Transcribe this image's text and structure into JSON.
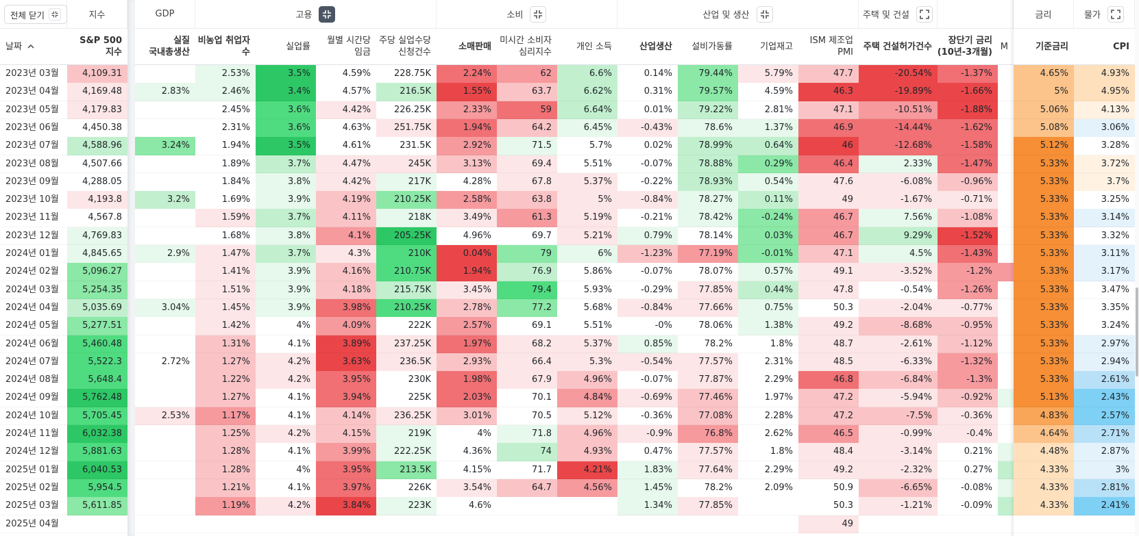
{
  "toolbar": {
    "close_all": "전체 닫기"
  },
  "palette": {
    "w": "#ffffff",
    "g1": "#e7f8ec",
    "g2": "#c2f0cf",
    "g3": "#8be8a6",
    "g4": "#4fdc80",
    "g5": "#2dc865",
    "r1": "#fde6e7",
    "r2": "#fac4c6",
    "r3": "#f69a9e",
    "r4": "#f07074",
    "r5": "#ea4649",
    "o0": "#fff2e3",
    "o1": "#fee0bd",
    "o2": "#fcc48b",
    "o3": "#f9a659",
    "o4": "#f68f36",
    "b1": "#e4f2fc",
    "b2": "#b8e1f7",
    "b3": "#7ed0f5"
  },
  "groups": [
    {
      "label": "지수",
      "start": 1,
      "span": 1
    },
    {
      "label": "GDP",
      "start": 2,
      "span": 1
    },
    {
      "label": "고용",
      "start": 3,
      "span": 4,
      "icon": "collapse-active"
    },
    {
      "label": "소비",
      "start": 7,
      "span": 3,
      "icon": "collapse"
    },
    {
      "label": "산업 및 생산",
      "start": 10,
      "span": 4,
      "icon": "collapse"
    },
    {
      "label": "주택 및 건설",
      "start": 14,
      "span": 1,
      "icon": "expand"
    },
    {
      "label": "금리",
      "start": 17,
      "span": 1
    },
    {
      "label": "물가",
      "start": 18,
      "span": 1,
      "icon": "expand"
    }
  ],
  "columns": [
    {
      "header": [
        "날짜"
      ],
      "bold": false,
      "sort": "asc"
    },
    {
      "header": [
        "S&P 500",
        "지수"
      ],
      "bold": true
    },
    {
      "header": [
        "실질",
        "국내총생산"
      ],
      "bold": true
    },
    {
      "header": [
        "비농업 취업자",
        "수"
      ],
      "bold": true
    },
    {
      "header": [
        "실업률"
      ],
      "bold": false
    },
    {
      "header": [
        "월별 시간당",
        "임금"
      ],
      "bold": false
    },
    {
      "header": [
        "주당 실업수당",
        "신청건수"
      ],
      "bold": false
    },
    {
      "header": [
        "소매판매"
      ],
      "bold": true
    },
    {
      "header": [
        "미시간 소비자",
        "심리지수"
      ],
      "bold": false
    },
    {
      "header": [
        "개인 소득"
      ],
      "bold": false
    },
    {
      "header": [
        "산업생산"
      ],
      "bold": true
    },
    {
      "header": [
        "설비가동률"
      ],
      "bold": false
    },
    {
      "header": [
        "기업재고"
      ],
      "bold": false
    },
    {
      "header": [
        "ISM 제조업",
        "PMI"
      ],
      "bold": false
    },
    {
      "header": [
        "주택 건설허가건수"
      ],
      "bold": true
    },
    {
      "header": [
        "장단기 금리",
        "(10년-3개월)"
      ],
      "bold": true
    },
    {
      "header": [
        "M"
      ],
      "bold": false
    },
    {
      "header": [
        "기준금리"
      ],
      "bold": true
    },
    {
      "header": [
        "CPI"
      ],
      "bold": true
    }
  ],
  "rows": [
    {
      "cells": [
        "2023년 03월",
        "4,109.31",
        null,
        "2.53%",
        "3.5%",
        "4.59%",
        "228.75K",
        "2.24%",
        "62",
        "6.6%",
        "0.14%",
        "79.44%",
        "5.79%",
        "47.7",
        "-20.54%",
        "-1.37%",
        null,
        "4.65%",
        "4.93%"
      ],
      "colors": [
        "w",
        "r2",
        "w",
        "g1",
        "g5",
        "w",
        "w",
        "r4",
        "r3",
        "g2",
        "w",
        "g3",
        "r1",
        "r2",
        "r5",
        "r4",
        "w",
        "o2",
        "o1"
      ]
    },
    {
      "cells": [
        "2023년 04월",
        "4,169.48",
        "2.83%",
        "2.46%",
        "3.4%",
        "4.57%",
        "216.5K",
        "1.55%",
        "63.7",
        "6.62%",
        "0.31%",
        "79.57%",
        "4.59%",
        "46.3",
        "-19.89%",
        "-1.66%",
        null,
        "5%",
        "4.95%"
      ],
      "colors": [
        "w",
        "r1",
        "g1",
        "g1",
        "g5",
        "w",
        "g2",
        "r5",
        "r2",
        "g2",
        "w",
        "g3",
        "w",
        "r5",
        "r5",
        "r5",
        "w",
        "o2",
        "o1"
      ]
    },
    {
      "cells": [
        "2023년 05월",
        "4,179.83",
        null,
        "2.45%",
        "3.6%",
        "4.42%",
        "226.25K",
        "2.33%",
        "59",
        "6.64%",
        "0.01%",
        "79.22%",
        "2.81%",
        "47.1",
        "-10.51%",
        "-1.88%",
        null,
        "5.06%",
        "4.13%"
      ],
      "colors": [
        "w",
        "r1",
        "w",
        "w",
        "g4",
        "r1",
        "w",
        "r3",
        "r4",
        "g2",
        "w",
        "g2",
        "w",
        "r2",
        "r3",
        "r5",
        "w",
        "o2",
        "o0"
      ]
    },
    {
      "cells": [
        "2023년 06월",
        "4,450.38",
        null,
        "2.31%",
        "3.6%",
        "4.63%",
        "251.75K",
        "1.94%",
        "64.2",
        "6.45%",
        "-0.43%",
        "78.6%",
        "1.37%",
        "46.9",
        "-14.44%",
        "-1.62%",
        null,
        "5.08%",
        "3.06%"
      ],
      "colors": [
        "w",
        "w",
        "w",
        "w",
        "g4",
        "w",
        "r1",
        "r4",
        "r2",
        "g1",
        "r1",
        "g1",
        "g1",
        "r4",
        "r4",
        "r4",
        "w",
        "o2",
        "b1"
      ]
    },
    {
      "cells": [
        "2023년 07월",
        "4,588.96",
        "3.24%",
        "1.94%",
        "3.5%",
        "4.61%",
        "231.5K",
        "2.92%",
        "71.5",
        "5.7%",
        "0.02%",
        "78.99%",
        "0.64%",
        "46",
        "-12.68%",
        "-1.58%",
        null,
        "5.12%",
        "3.28%"
      ],
      "colors": [
        "w",
        "g2",
        "g3",
        "w",
        "g5",
        "w",
        "w",
        "r3",
        "g1",
        "w",
        "w",
        "g2",
        "g2",
        "r5",
        "r4",
        "r4",
        "w",
        "o4",
        "w"
      ]
    },
    {
      "cells": [
        "2023년 08월",
        "4,507.66",
        null,
        "1.89%",
        "3.7%",
        "4.47%",
        "245K",
        "3.13%",
        "69.4",
        "5.51%",
        "-0.07%",
        "78.88%",
        "0.29%",
        "46.4",
        "2.33%",
        "-1.47%",
        null,
        "5.33%",
        "3.72%"
      ],
      "colors": [
        "w",
        "w",
        "w",
        "w",
        "g2",
        "r1",
        "r1",
        "r2",
        "r1",
        "w",
        "w",
        "g2",
        "g3",
        "r4",
        "g1",
        "r4",
        "w",
        "o4",
        "o0"
      ]
    },
    {
      "cells": [
        "2023년 09월",
        "4,288.05",
        null,
        "1.84%",
        "3.8%",
        "4.42%",
        "217K",
        "4.28%",
        "67.8",
        "5.37%",
        "-0.22%",
        "78.93%",
        "0.54%",
        "47.6",
        "-6.08%",
        "-0.96%",
        null,
        "5.33%",
        "3.7%"
      ],
      "colors": [
        "w",
        "w",
        "w",
        "w",
        "g1",
        "r1",
        "g1",
        "w",
        "r1",
        "r1",
        "w",
        "g2",
        "g1",
        "r1",
        "r1",
        "r2",
        "w",
        "o4",
        "o0"
      ]
    },
    {
      "cells": [
        "2023년 10월",
        "4,193.8",
        "3.2%",
        "1.69%",
        "3.9%",
        "4.19%",
        "210.25K",
        "2.58%",
        "63.8",
        "5%",
        "-0.84%",
        "78.27%",
        "0.11%",
        "49",
        "-1.67%",
        "-0.71%",
        null,
        "5.33%",
        "3.25%"
      ],
      "colors": [
        "w",
        "r1",
        "g2",
        "w",
        "g1",
        "r2",
        "g3",
        "r3",
        "r2",
        "r1",
        "r1",
        "g1",
        "g2",
        "r1",
        "r1",
        "r1",
        "w",
        "o4",
        "w"
      ]
    },
    {
      "cells": [
        "2023년 11월",
        "4,567.8",
        null,
        "1.59%",
        "3.7%",
        "4.11%",
        "218K",
        "3.49%",
        "61.3",
        "5.19%",
        "-0.21%",
        "78.42%",
        "-0.24%",
        "46.7",
        "7.56%",
        "-1.08%",
        null,
        "5.33%",
        "3.14%"
      ],
      "colors": [
        "w",
        "w",
        "w",
        "r1",
        "g2",
        "r2",
        "g1",
        "r1",
        "r3",
        "r1",
        "w",
        "g1",
        "g3",
        "r3",
        "g1",
        "r2",
        "w",
        "o4",
        "b1"
      ]
    },
    {
      "cells": [
        "2023년 12월",
        "4,769.83",
        null,
        "1.68%",
        "3.8%",
        "4.1%",
        "205.25K",
        "4.96%",
        "69.7",
        "5.21%",
        "0.79%",
        "78.14%",
        "0.03%",
        "46.7",
        "9.29%",
        "-1.52%",
        null,
        "5.33%",
        "3.32%"
      ],
      "colors": [
        "w",
        "g1",
        "w",
        "w",
        "g1",
        "r3",
        "g5",
        "w",
        "w",
        "r1",
        "g1",
        "w",
        "g3",
        "r3",
        "g2",
        "r5",
        "w",
        "o4",
        "w"
      ]
    },
    {
      "cells": [
        "2024년 01월",
        "4,845.65",
        "2.9%",
        "1.47%",
        "3.7%",
        "4.3%",
        "210K",
        "0.04%",
        "79",
        "6%",
        "-1.23%",
        "77.19%",
        "-0.01%",
        "47.1",
        "4.5%",
        "-1.43%",
        null,
        "5.33%",
        "3.11%"
      ],
      "colors": [
        "w",
        "g1",
        "g1",
        "r1",
        "g2",
        "r1",
        "g4",
        "r5",
        "g3",
        "g1",
        "r2",
        "r3",
        "g3",
        "r2",
        "g1",
        "r4",
        "w",
        "o4",
        "b1"
      ]
    },
    {
      "cells": [
        "2024년 02월",
        "5,096.27",
        null,
        "1.41%",
        "3.9%",
        "4.16%",
        "210.75K",
        "1.94%",
        "76.9",
        "5.86%",
        "-0.07%",
        "78.07%",
        "0.57%",
        "49.1",
        "-3.52%",
        "-1.2%",
        null,
        "5.33%",
        "3.17%"
      ],
      "colors": [
        "w",
        "g3",
        "w",
        "r1",
        "g1",
        "r2",
        "g4",
        "r5",
        "g2",
        "w",
        "w",
        "w",
        "g1",
        "r1",
        "r1",
        "r3",
        "r3",
        "o4",
        "b1"
      ]
    },
    {
      "cells": [
        "2024년 03월",
        "5,254.35",
        null,
        "1.51%",
        "3.9%",
        "4.18%",
        "215.75K",
        "3.45%",
        "79.4",
        "5.93%",
        "-0.29%",
        "77.85%",
        "0.44%",
        "47.8",
        "-0.54%",
        "-1.26%",
        null,
        "5.33%",
        "3.47%"
      ],
      "colors": [
        "w",
        "g3",
        "w",
        "r1",
        "g1",
        "r2",
        "g2",
        "r1",
        "g4",
        "w",
        "w",
        "r1",
        "g2",
        "r1",
        "w",
        "r3",
        "w",
        "o4",
        "w"
      ]
    },
    {
      "cells": [
        "2024년 04월",
        "5,035.69",
        "3.04%",
        "1.45%",
        "3.9%",
        "3.98%",
        "210.25K",
        "2.78%",
        "77.2",
        "5.68%",
        "-0.84%",
        "77.66%",
        "0.75%",
        "50.3",
        "-2.04%",
        "-0.77%",
        null,
        "5.33%",
        "3.35%"
      ],
      "colors": [
        "w",
        "g2",
        "g1",
        "r1",
        "g1",
        "r4",
        "g4",
        "r2",
        "g3",
        "w",
        "r1",
        "r1",
        "g1",
        "w",
        "r1",
        "r1",
        "w",
        "o4",
        "w"
      ]
    },
    {
      "cells": [
        "2024년 05월",
        "5,277.51",
        null,
        "1.42%",
        "4%",
        "4.09%",
        "222K",
        "2.57%",
        "69.1",
        "5.51%",
        "-0%",
        "78.06%",
        "1.38%",
        "49.2",
        "-8.68%",
        "-0.95%",
        null,
        "5.33%",
        "3.24%"
      ],
      "colors": [
        "w",
        "g3",
        "w",
        "r1",
        "w",
        "r3",
        "w",
        "r3",
        "w",
        "w",
        "w",
        "w",
        "g1",
        "r1",
        "r2",
        "r2",
        "w",
        "o4",
        "w"
      ]
    },
    {
      "cells": [
        "2024년 06월",
        "5,460.48",
        null,
        "1.31%",
        "4.1%",
        "3.89%",
        "237.25K",
        "1.97%",
        "68.2",
        "5.37%",
        "0.85%",
        "78.2%",
        "1.8%",
        "48.7",
        "-2.61%",
        "-1.12%",
        null,
        "5.33%",
        "2.97%"
      ],
      "colors": [
        "w",
        "g4",
        "w",
        "r2",
        "w",
        "r5",
        "r1",
        "r4",
        "r1",
        "r1",
        "g1",
        "w",
        "w",
        "r1",
        "r1",
        "r2",
        "w",
        "o4",
        "b1"
      ]
    },
    {
      "cells": [
        "2024년 07월",
        "5,522.3",
        "2.72%",
        "1.27%",
        "4.2%",
        "3.63%",
        "236.5K",
        "2.93%",
        "66.4",
        "5.3%",
        "-0.54%",
        "77.57%",
        "2.31%",
        "48.5",
        "-6.33%",
        "-1.32%",
        null,
        "5.33%",
        "2.94%"
      ],
      "colors": [
        "w",
        "g4",
        "w",
        "r2",
        "r1",
        "r5",
        "r1",
        "r2",
        "r1",
        "r1",
        "r1",
        "r1",
        "w",
        "r1",
        "r1",
        "r3",
        "w",
        "o4",
        "b1"
      ]
    },
    {
      "cells": [
        "2024년 08월",
        "5,648.4",
        null,
        "1.22%",
        "4.2%",
        "3.95%",
        "230K",
        "1.98%",
        "67.9",
        "4.96%",
        "-0.07%",
        "77.87%",
        "2.29%",
        "46.8",
        "-6.84%",
        "-1.3%",
        null,
        "5.33%",
        "2.61%"
      ],
      "colors": [
        "w",
        "g4",
        "w",
        "r2",
        "r1",
        "r4",
        "w",
        "r4",
        "r1",
        "r2",
        "w",
        "r1",
        "w",
        "r4",
        "r2",
        "r3",
        "w",
        "o4",
        "b2"
      ]
    },
    {
      "cells": [
        "2024년 09월",
        "5,762.48",
        null,
        "1.27%",
        "4.1%",
        "3.94%",
        "225K",
        "2.03%",
        "70.1",
        "4.84%",
        "-0.69%",
        "77.46%",
        "1.97%",
        "47.2",
        "-5.94%",
        "-0.92%",
        null,
        "5.13%",
        "2.43%"
      ],
      "colors": [
        "w",
        "g5",
        "w",
        "r2",
        "w",
        "r4",
        "w",
        "r4",
        "w",
        "r3",
        "r1",
        "r2",
        "w",
        "r2",
        "r1",
        "r2",
        "g1",
        "o4",
        "b3"
      ]
    },
    {
      "cells": [
        "2024년 10월",
        "5,705.45",
        "2.53%",
        "1.17%",
        "4.1%",
        "4.14%",
        "236.25K",
        "3.01%",
        "70.5",
        "5.12%",
        "-0.36%",
        "77.08%",
        "2.28%",
        "47.2",
        "-7.5%",
        "-0.36%",
        null,
        "4.83%",
        "2.57%"
      ],
      "colors": [
        "w",
        "g4",
        "r1",
        "r3",
        "w",
        "r2",
        "r1",
        "r2",
        "w",
        "r1",
        "w",
        "r2",
        "w",
        "r2",
        "r2",
        "r1",
        "w",
        "o3",
        "b3"
      ]
    },
    {
      "cells": [
        "2024년 11월",
        "6,032.38",
        null,
        "1.25%",
        "4.2%",
        "4.15%",
        "219K",
        "4%",
        "71.8",
        "4.96%",
        "-0.9%",
        "76.8%",
        "2.62%",
        "46.5",
        "-0.99%",
        "-0.4%",
        null,
        "4.64%",
        "2.71%"
      ],
      "colors": [
        "w",
        "g5",
        "w",
        "r2",
        "r1",
        "r2",
        "g1",
        "w",
        "g1",
        "r2",
        "r1",
        "r3",
        "w",
        "r3",
        "r1",
        "r1",
        "w",
        "o2",
        "b2"
      ]
    },
    {
      "cells": [
        "2024년 12월",
        "5,881.63",
        null,
        "1.28%",
        "4.1%",
        "3.99%",
        "222.25K",
        "4.36%",
        "74",
        "4.93%",
        "0.47%",
        "77.57%",
        "1.8%",
        "48.4",
        "-3.14%",
        "0.21%",
        null,
        "4.48%",
        "2.87%"
      ],
      "colors": [
        "w",
        "g4",
        "w",
        "r2",
        "w",
        "r3",
        "g1",
        "w",
        "g2",
        "r2",
        "w",
        "r1",
        "w",
        "r1",
        "r1",
        "w",
        "g1",
        "o1",
        "b1"
      ]
    },
    {
      "cells": [
        "2025년 01월",
        "6,040.53",
        null,
        "1.28%",
        "4%",
        "3.95%",
        "213.5K",
        "4.15%",
        "71.7",
        "4.21%",
        "1.83%",
        "77.64%",
        "2.29%",
        "49.2",
        "-2.32%",
        "0.27%",
        null,
        "4.33%",
        "3%"
      ],
      "colors": [
        "w",
        "g5",
        "w",
        "r2",
        "w",
        "r4",
        "g3",
        "w",
        "w",
        "r5",
        "g1",
        "r1",
        "w",
        "r1",
        "r1",
        "w",
        "g2",
        "o1",
        "b1"
      ]
    },
    {
      "cells": [
        "2025년 02월",
        "5,954.5",
        null,
        "1.21%",
        "4.1%",
        "3.97%",
        "226K",
        "3.54%",
        "64.7",
        "4.56%",
        "1.45%",
        "78.2%",
        "2.09%",
        "50.9",
        "-6.65%",
        "-0.08%",
        null,
        "4.33%",
        "2.81%"
      ],
      "colors": [
        "w",
        "g4",
        "w",
        "r2",
        "w",
        "r4",
        "w",
        "r1",
        "r2",
        "r3",
        "g1",
        "w",
        "w",
        "w",
        "r2",
        "w",
        "g1",
        "o1",
        "b2"
      ]
    },
    {
      "cells": [
        "2025년 03월",
        "5,611.85",
        null,
        "1.19%",
        "4.2%",
        "3.84%",
        "223K",
        "4.6%",
        null,
        null,
        "1.34%",
        "77.85%",
        null,
        "50.3",
        "-1.21%",
        "-0.09%",
        null,
        "4.33%",
        "2.41%"
      ],
      "colors": [
        "w",
        "g3",
        "w",
        "r3",
        "r1",
        "r5",
        "g1",
        "w",
        "w",
        "w",
        "g1",
        "r1",
        "w",
        "w",
        "r1",
        "w",
        "g2",
        "o1",
        "b3"
      ]
    },
    {
      "cells": [
        "2025년 04월",
        null,
        null,
        null,
        null,
        null,
        null,
        null,
        null,
        null,
        null,
        null,
        null,
        "49",
        null,
        null,
        null,
        null,
        null
      ],
      "colors": [
        "w",
        "w",
        "w",
        "w",
        "w",
        "w",
        "w",
        "w",
        "w",
        "w",
        "w",
        "w",
        "w",
        "r1",
        "w",
        "w",
        "w",
        "w",
        "w"
      ]
    }
  ]
}
